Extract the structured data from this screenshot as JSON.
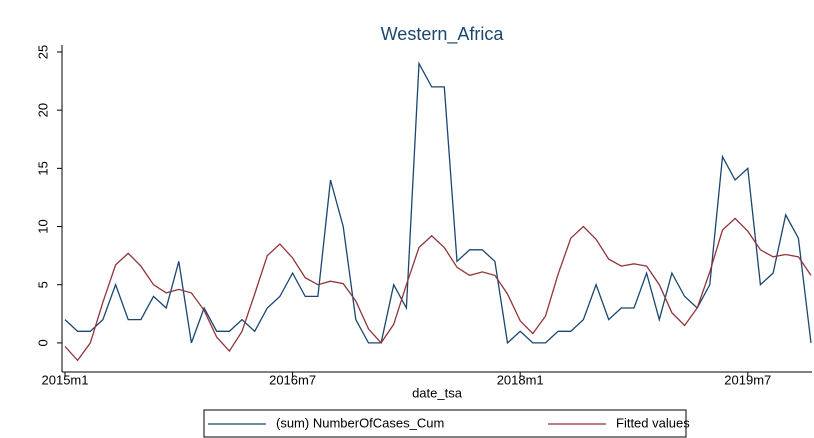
{
  "chart_data": {
    "type": "line",
    "title": "Western_Africa",
    "x_label": "date_tsa",
    "categories": [
      "2015m1",
      null,
      null,
      null,
      null,
      null,
      null,
      null,
      null,
      null,
      null,
      null,
      null,
      null,
      null,
      null,
      null,
      null,
      "2016m7",
      null,
      null,
      null,
      null,
      null,
      null,
      null,
      null,
      null,
      null,
      null,
      null,
      null,
      null,
      null,
      null,
      null,
      "2018m1",
      null,
      null,
      null,
      null,
      null,
      null,
      null,
      null,
      null,
      null,
      null,
      null,
      null,
      null,
      null,
      null,
      null,
      "2019m7",
      null,
      null,
      null,
      null,
      null
    ],
    "series": [
      {
        "name": "(sum) NumberOfCases_Cum",
        "color": "#1a476f",
        "values": [
          2,
          1,
          1,
          2,
          5,
          2,
          2,
          4,
          3,
          7,
          0,
          3,
          1,
          1,
          2,
          1,
          3,
          4,
          6,
          4,
          4,
          14,
          10,
          2,
          0,
          0,
          5,
          3,
          24,
          22,
          22,
          7,
          8,
          8,
          7,
          0,
          1,
          0,
          0,
          1,
          1,
          2,
          5,
          2,
          3,
          3,
          6,
          2,
          6,
          4,
          3,
          5,
          16,
          14,
          15,
          5,
          6,
          11,
          9,
          0
        ]
      },
      {
        "name": "Fitted values",
        "color": "#90353b",
        "values": [
          -0.3,
          -1.5,
          0,
          3.5,
          6.7,
          7.7,
          6.6,
          5,
          4.3,
          4.6,
          4.3,
          2.8,
          0.5,
          -0.7,
          1,
          4.2,
          7.5,
          8.5,
          7.3,
          5.6,
          5,
          5.3,
          5.1,
          3.6,
          1.2,
          0,
          1.6,
          5,
          8.2,
          9.2,
          8.2,
          6.5,
          5.8,
          6.1,
          5.8,
          4.2,
          1.9,
          0.8,
          2.3,
          5.9,
          9,
          10,
          8.9,
          7.2,
          6.6,
          6.8,
          6.6,
          5,
          2.6,
          1.5,
          3,
          6.1,
          9.7,
          10.7,
          9.6,
          8,
          7.4,
          7.6,
          7.4,
          5.8
        ]
      }
    ],
    "ylim": [
      -2.5,
      25.6
    ],
    "yticks": [
      0,
      5,
      10,
      15,
      20,
      25
    ],
    "grid": false,
    "legend": "bottom"
  }
}
